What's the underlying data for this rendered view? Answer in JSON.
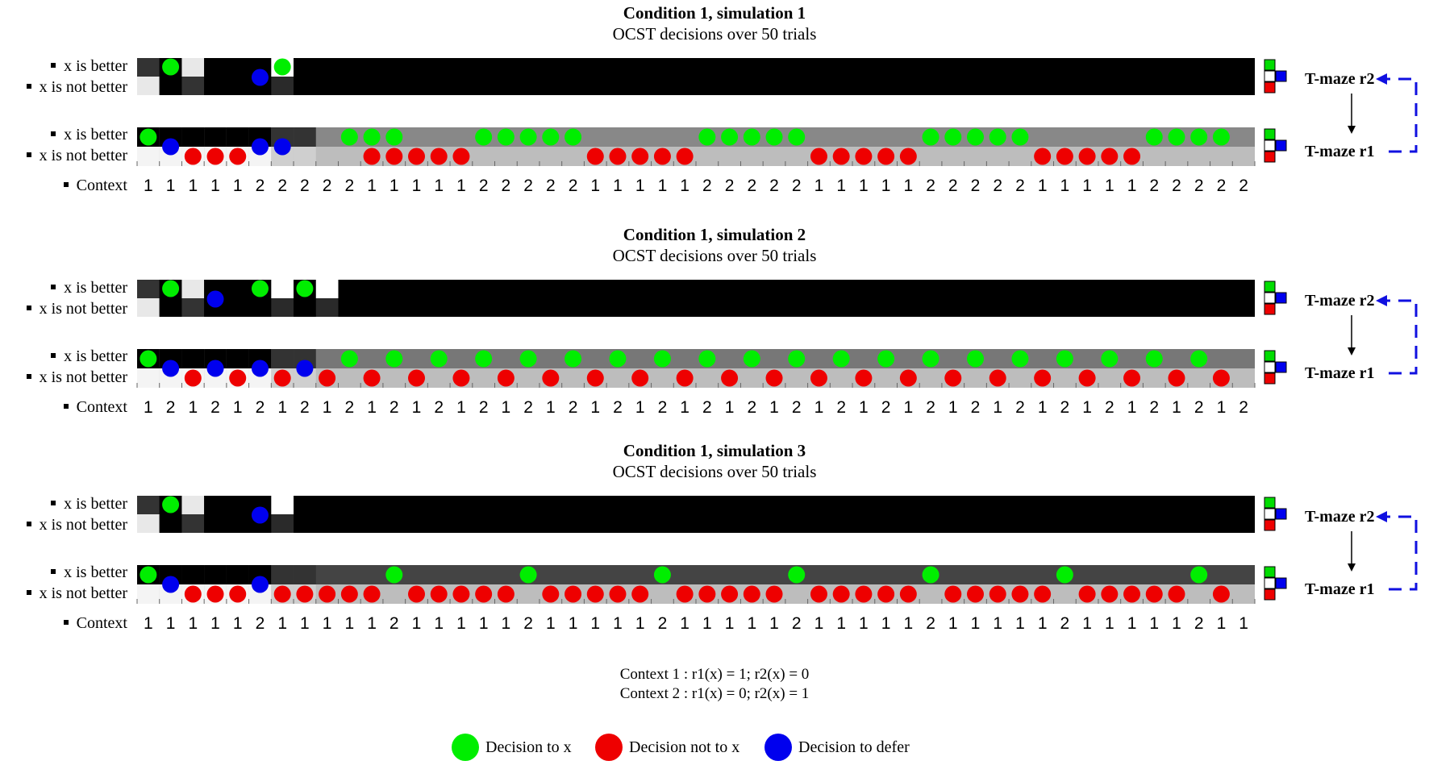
{
  "row_labels": {
    "x_better": "x is better",
    "x_not_better": "x is not better",
    "context": "Context"
  },
  "tmaze_labels": {
    "r2": "T-maze r2",
    "r1": "T-maze r1"
  },
  "colors": {
    "decision_x": "#00ee00",
    "decision_not_x": "#ee0000",
    "decision_defer": "#0000ee",
    "arrow": "#1010e0"
  },
  "panels": [
    {
      "title": "Condition 1, simulation 1",
      "subtitle": "OCST decisions over 50 trials",
      "context": [
        1,
        1,
        1,
        1,
        1,
        2,
        2,
        2,
        2,
        2,
        1,
        1,
        1,
        1,
        1,
        2,
        2,
        2,
        2,
        2,
        1,
        1,
        1,
        1,
        1,
        2,
        2,
        2,
        2,
        2,
        1,
        1,
        1,
        1,
        1,
        2,
        2,
        2,
        2,
        2,
        1,
        1,
        1,
        1,
        1,
        2,
        2,
        2,
        2,
        2
      ],
      "r2_decisions": [
        [
          "x",
          1
        ],
        [
          "defer",
          5
        ],
        [
          "x",
          6
        ]
      ],
      "r1_decisions_x": [
        0,
        9,
        10,
        11,
        15,
        16,
        17,
        18,
        19,
        25,
        26,
        27,
        28,
        29,
        35,
        36,
        37,
        38,
        39,
        45,
        46,
        47,
        48
      ],
      "r1_decisions_not_x": [
        2,
        3,
        4,
        10,
        11,
        12,
        13,
        14,
        20,
        21,
        22,
        23,
        24,
        30,
        31,
        32,
        33,
        34,
        40,
        41,
        42,
        43,
        44
      ],
      "r1_decisions_defer": [
        1,
        5,
        6
      ],
      "r2_active_trials": 8,
      "r1_shade": "#888888"
    },
    {
      "title": "Condition 1, simulation 2",
      "subtitle": "OCST decisions over 50 trials",
      "context": [
        1,
        2,
        1,
        2,
        1,
        2,
        1,
        2,
        1,
        2,
        1,
        2,
        1,
        2,
        1,
        2,
        1,
        2,
        1,
        2,
        1,
        2,
        1,
        2,
        1,
        2,
        1,
        2,
        1,
        2,
        1,
        2,
        1,
        2,
        1,
        2,
        1,
        2,
        1,
        2,
        1,
        2,
        1,
        2,
        1,
        2,
        1,
        2,
        1,
        2
      ],
      "r2_decisions": [
        [
          "x",
          1
        ],
        [
          "defer",
          3
        ],
        [
          "x",
          5
        ],
        [
          "x",
          7
        ]
      ],
      "r1_decisions_x": [
        0,
        9,
        11,
        13,
        15,
        17,
        19,
        21,
        23,
        25,
        27,
        29,
        31,
        33,
        35,
        37,
        39,
        41,
        43,
        45,
        47
      ],
      "r1_decisions_not_x": [
        2,
        4,
        6,
        8,
        10,
        12,
        14,
        16,
        18,
        20,
        22,
        24,
        26,
        28,
        30,
        32,
        34,
        36,
        38,
        40,
        42,
        44,
        46,
        48
      ],
      "r1_decisions_defer": [
        1,
        3,
        5,
        7
      ],
      "r2_active_trials": 9,
      "r1_shade": "#777777"
    },
    {
      "title": "Condition 1, simulation 3",
      "subtitle": "OCST decisions over 50 trials",
      "context": [
        1,
        1,
        1,
        1,
        1,
        2,
        1,
        1,
        1,
        1,
        1,
        2,
        1,
        1,
        1,
        1,
        1,
        2,
        1,
        1,
        1,
        1,
        1,
        2,
        1,
        1,
        1,
        1,
        1,
        2,
        1,
        1,
        1,
        1,
        1,
        2,
        1,
        1,
        1,
        1,
        1,
        2,
        1,
        1,
        1,
        1,
        1,
        2,
        1,
        1
      ],
      "r2_decisions": [
        [
          "x",
          1
        ],
        [
          "defer",
          5
        ]
      ],
      "r1_decisions_x": [
        0,
        11,
        17,
        23,
        29,
        35,
        41,
        47
      ],
      "r1_decisions_not_x": [
        2,
        3,
        4,
        6,
        7,
        8,
        9,
        10,
        12,
        13,
        14,
        15,
        16,
        18,
        19,
        20,
        21,
        22,
        24,
        25,
        26,
        27,
        28,
        30,
        31,
        32,
        33,
        34,
        36,
        37,
        38,
        39,
        40,
        42,
        43,
        44,
        45,
        46,
        48
      ],
      "r1_decisions_defer": [
        1,
        5
      ],
      "r2_active_trials": 7,
      "r1_shade": "#444444"
    }
  ],
  "footnote": {
    "line1": "Context 1 : r1(x) = 1; r2(x) = 0",
    "line2": "Context 2 : r1(x) = 0; r2(x) = 1"
  },
  "legend": {
    "x": "Decision to x",
    "not_x": "Decision not to x",
    "defer": "Decision to defer"
  }
}
